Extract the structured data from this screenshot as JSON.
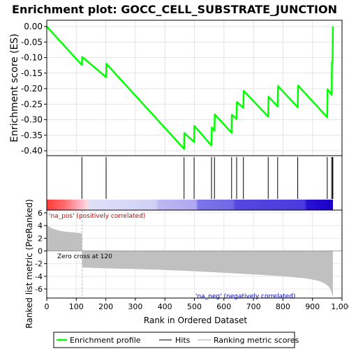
{
  "chart_data": [
    {
      "type": "line",
      "title": "Enrichment plot: GOCC_CELL_SUBSTRATE_JUNCTION",
      "ylabel": "Enrichment score (ES)",
      "ylim": [
        -0.41,
        0.01
      ],
      "yticks": [
        "0.00",
        "-0.05",
        "-0.10",
        "-0.15",
        "-0.20",
        "-0.25",
        "-0.30",
        "-0.35",
        "-0.40"
      ],
      "ytick_values": [
        0,
        -0.05,
        -0.1,
        -0.15,
        -0.2,
        -0.25,
        -0.3,
        -0.35,
        -0.4
      ],
      "grid": true,
      "series": [
        {
          "name": "Enrichment profile",
          "color": "#00ff00",
          "x": [
            0,
            119,
            120,
            201,
            202,
            465,
            466,
            499,
            500,
            558,
            559,
            568,
            569,
            626,
            627,
            643,
            644,
            666,
            667,
            750,
            751,
            782,
            783,
            850,
            851,
            950,
            951,
            965,
            966,
            968,
            969
          ],
          "y": [
            0,
            -0.124,
            -0.098,
            -0.163,
            -0.12,
            -0.394,
            -0.343,
            -0.372,
            -0.32,
            -0.383,
            -0.325,
            -0.336,
            -0.283,
            -0.342,
            -0.284,
            -0.298,
            -0.243,
            -0.262,
            -0.207,
            -0.29,
            -0.226,
            -0.257,
            -0.192,
            -0.26,
            -0.19,
            -0.292,
            -0.202,
            -0.22,
            -0.115,
            -0.115,
            0
          ]
        }
      ]
    },
    {
      "type": "scatter",
      "name": "Hits",
      "hits": [
        119,
        201,
        465,
        499,
        558,
        568,
        626,
        643,
        666,
        750,
        782,
        850,
        950,
        965,
        968,
        969
      ],
      "xlim": [
        0,
        1000
      ]
    },
    {
      "type": "area",
      "ylabel": "Ranked list metric (PreRanked)",
      "xlabel": "Rank in Ordered Dataset",
      "ylim": [
        -7.5,
        6.5
      ],
      "yticks": [
        "6",
        "4",
        "2",
        "0",
        "-2",
        "-4",
        "-6"
      ],
      "ytick_values": [
        6,
        4,
        2,
        0,
        -2,
        -4,
        -6
      ],
      "xlim": [
        0,
        1000
      ],
      "xticks": [
        "0",
        "100",
        "200",
        "300",
        "400",
        "500",
        "600",
        "700",
        "800",
        "900",
        "1,000"
      ],
      "xtick_values": [
        0,
        100,
        200,
        300,
        400,
        500,
        600,
        700,
        800,
        900,
        1000
      ],
      "series": [
        {
          "name": "Ranking metric scores",
          "color": "#c0c0c0",
          "x": [
            0,
            5,
            20,
            50,
            119,
            120,
            200,
            300,
            400,
            500,
            600,
            700,
            800,
            880,
            920,
            940,
            955,
            962,
            966,
            969
          ],
          "y": [
            4.3,
            3.9,
            3.5,
            3.1,
            2.8,
            -2.6,
            -2.75,
            -2.85,
            -3.0,
            -3.2,
            -3.45,
            -3.7,
            -4.0,
            -4.35,
            -4.7,
            -5.1,
            -5.6,
            -6.2,
            -6.8,
            -7.2
          ]
        }
      ],
      "annotations": {
        "zero_cross": "Zero cross at 120",
        "pos_label": "'na_pos' (positively correlated)",
        "neg_label": "'na_neg' (negatively correlated)"
      }
    }
  ],
  "legend": {
    "items": [
      "Enrichment profile",
      "Hits",
      "Ranking metric scores"
    ],
    "colors": [
      "#00ff00",
      "#7f7f7f",
      "#d0d0d0"
    ],
    "placement": "bottom"
  }
}
